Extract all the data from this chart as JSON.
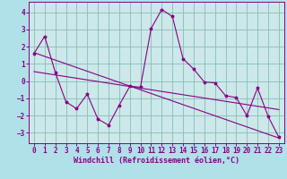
{
  "background_color": "#b0e0e8",
  "plot_bg_color": "#cce8e8",
  "line_color": "#880088",
  "grid_color": "#88bbbb",
  "xlabel": "Windchill (Refroidissement éolien,°C)",
  "xlabel_fontsize": 6.0,
  "tick_fontsize": 5.5,
  "xlim": [
    -0.5,
    23.5
  ],
  "ylim": [
    -3.6,
    4.6
  ],
  "yticks": [
    -3,
    -2,
    -1,
    0,
    1,
    2,
    3,
    4
  ],
  "xticks": [
    0,
    1,
    2,
    3,
    4,
    5,
    6,
    7,
    8,
    9,
    10,
    11,
    12,
    13,
    14,
    15,
    16,
    17,
    18,
    19,
    20,
    21,
    22,
    23
  ],
  "series1_x": [
    0,
    1,
    2,
    3,
    4,
    5,
    6,
    7,
    8,
    9,
    10,
    11,
    12,
    13,
    14,
    15,
    16,
    17,
    18,
    19,
    20,
    21,
    22,
    23
  ],
  "series1_y": [
    1.6,
    2.6,
    0.5,
    -1.2,
    -1.6,
    -0.75,
    -2.2,
    -2.55,
    -1.4,
    -0.3,
    -0.35,
    3.05,
    4.15,
    3.75,
    1.3,
    0.7,
    -0.05,
    -0.1,
    -0.85,
    -0.95,
    -2.0,
    -0.4,
    -2.05,
    -3.25
  ],
  "series2_x": [
    0,
    23
  ],
  "series2_y": [
    1.65,
    -3.3
  ],
  "series3_x": [
    0,
    23
  ],
  "series3_y": [
    0.55,
    -1.65
  ]
}
